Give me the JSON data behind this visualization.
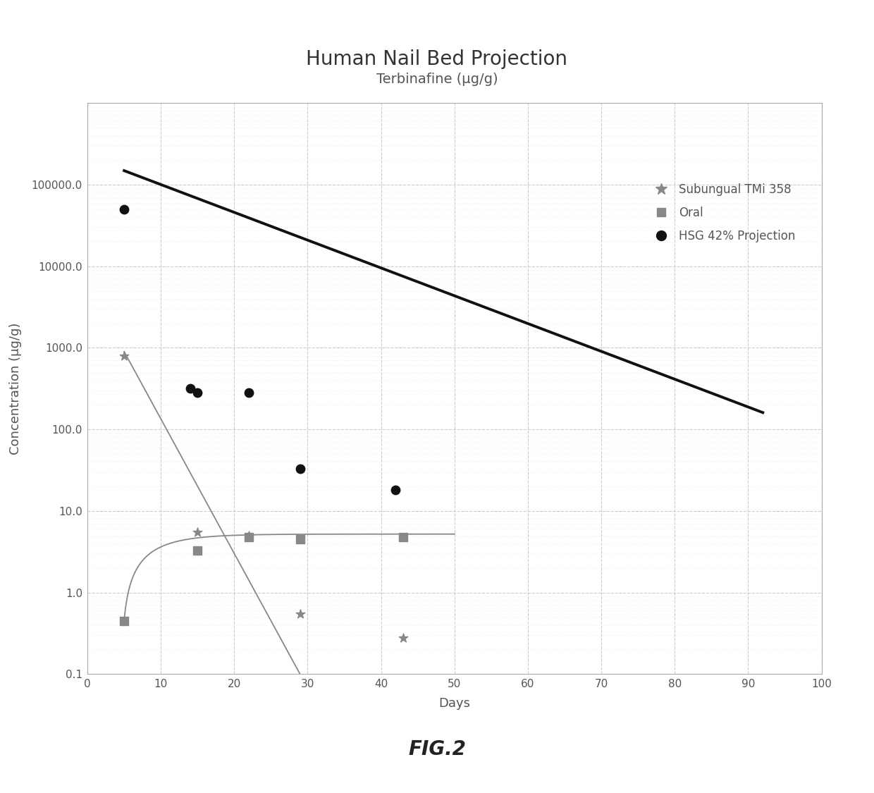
{
  "title": "Human Nail Bed Projection",
  "subtitle": "Terbinafine (µg/g)",
  "xlabel": "Days",
  "ylabel": "Concentration (µg/g)",
  "xlim": [
    0,
    100
  ],
  "ylim_log": [
    0.1,
    1000000.0
  ],
  "yticks": [
    0.1,
    1.0,
    10.0,
    100.0,
    1000.0,
    10000.0,
    100000.0
  ],
  "ytick_labels": [
    "0.1",
    "1.0",
    "10.0",
    "100.0",
    "1000.0",
    "10000.0",
    "100000.0"
  ],
  "xticks": [
    0,
    10,
    20,
    30,
    40,
    50,
    60,
    70,
    80,
    90,
    100
  ],
  "subungual_points_x": [
    5,
    15,
    22,
    29,
    43
  ],
  "subungual_points_y": [
    800,
    5.5,
    5.0,
    0.55,
    0.28
  ],
  "oral_points_x": [
    5,
    15,
    22,
    29,
    43
  ],
  "oral_points_y": [
    0.45,
    3.3,
    4.8,
    4.5,
    4.8
  ],
  "hsg_points_x": [
    5,
    14,
    15,
    22,
    29,
    42
  ],
  "hsg_points_y": [
    50000,
    320,
    280,
    280,
    33,
    18
  ],
  "hsg_curve_x_start": 5,
  "hsg_curve_x_end": 92,
  "hsg_curve_A": 220000,
  "hsg_curve_k": 0.0785,
  "legend_entries": [
    "Subungual TMi 358",
    "Oral",
    "HSG 42% Projection"
  ],
  "background_color": "#ffffff",
  "grid_major_color": "#cccccc",
  "grid_minor_color": "#e8e8e8",
  "subungual_color": "#888888",
  "oral_color": "#888888",
  "hsg_color": "#111111",
  "fig_caption": "FIG.2",
  "title_fontsize": 20,
  "subtitle_fontsize": 14,
  "tick_fontsize": 11,
  "label_fontsize": 13
}
